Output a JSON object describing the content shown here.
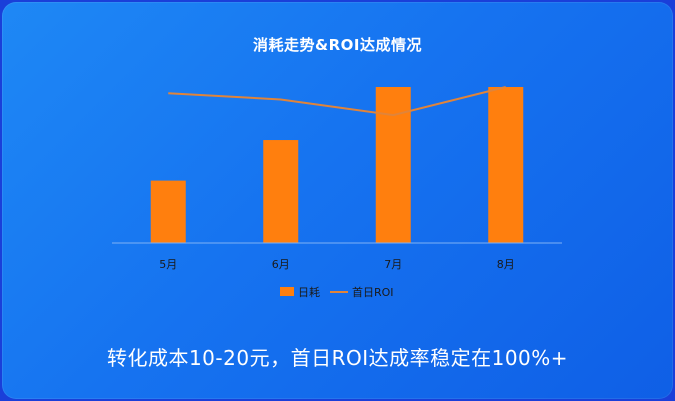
{
  "chart_data": {
    "type": "bar",
    "title": "消耗走势&ROI达成情况",
    "categories": [
      "5月",
      "6月",
      "7月",
      "8月"
    ],
    "series": [
      {
        "name": "日耗",
        "kind": "bar",
        "color": "#ff7f0e",
        "values": [
          40,
          66,
          100,
          100
        ]
      },
      {
        "name": "首日ROI",
        "kind": "line",
        "color": "#e0843a",
        "values": [
          96,
          92,
          82,
          100
        ]
      }
    ],
    "ylim": [
      0,
      100
    ],
    "grid": false,
    "legend": "bottom"
  },
  "caption": "转化成本10-20元，首日ROI达成率稳定在100%+"
}
